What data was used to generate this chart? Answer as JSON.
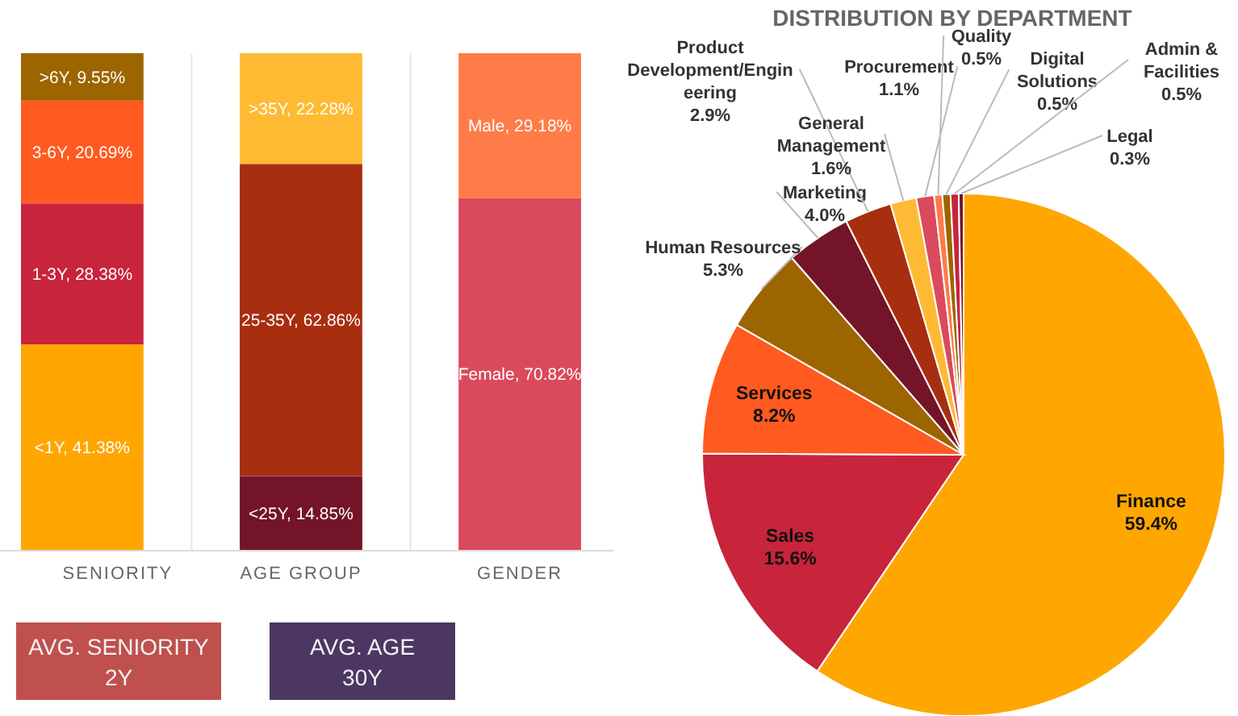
{
  "chart_data": [
    {
      "type": "bar",
      "stacked": true,
      "categories": [
        "SENIORITY",
        "AGE GROUP",
        "GENDER"
      ],
      "grid": "x",
      "series": [
        {
          "colors": [
            "#ffa600",
            "#741428",
            "#da4a5c"
          ],
          "values": [
            41.38,
            14.85,
            70.82
          ],
          "value_labels": [
            "<1Y, 41.38%",
            "<25Y, 14.85%",
            "Female, 70.82%"
          ]
        },
        {
          "colors": [
            "#c8243c",
            "#a82e10",
            "#ff7b48"
          ],
          "values": [
            28.38,
            62.86,
            29.18
          ],
          "value_labels": [
            "1-3Y, 28.38%",
            "25-35Y, 62.86%",
            "Male, 29.18%"
          ]
        },
        {
          "colors": [
            "#ff5a1f",
            "#ffba33",
            null
          ],
          "values": [
            20.69,
            22.28,
            null
          ],
          "value_labels": [
            "3-6Y, 20.69%",
            ">35Y, 22.28%",
            null
          ]
        },
        {
          "colors": [
            "#9c6500",
            null,
            null
          ],
          "values": [
            9.55,
            null,
            null
          ],
          "value_labels": [
            ">6Y, 9.55%",
            null,
            null
          ]
        }
      ]
    },
    {
      "type": "pie",
      "title": "DISTRIBUTION BY DEPARTMENT",
      "categories": [
        "Finance",
        "Sales",
        "Services",
        "Human Resources",
        "Marketing",
        "Product Development/Engineering",
        "General Management",
        "Procurement",
        "Quality",
        "Digital Solutions",
        "Admin & Facilities",
        "Legal"
      ],
      "values": [
        59.4,
        15.6,
        8.2,
        5.3,
        4.0,
        2.9,
        1.6,
        1.1,
        0.5,
        0.5,
        0.5,
        0.3
      ],
      "value_labels": [
        "59.4%",
        "15.6%",
        "8.2%",
        "5.3%",
        "4.0%",
        "2.9%",
        "1.6%",
        "1.1%",
        "0.5%",
        "0.5%",
        "0.5%",
        "0.3%"
      ],
      "colors": [
        "#ffa600",
        "#c8243c",
        "#ff5a1f",
        "#9c6500",
        "#741428",
        "#a82e10",
        "#ffba33",
        "#da4a5c",
        "#ff7b48",
        "#9c6500",
        "#c8243c",
        "#741428"
      ]
    },
    {
      "type": "other",
      "categories": [
        "AVG. SENIORITY",
        "AVG. AGE"
      ],
      "value_labels": [
        "2Y",
        "30Y"
      ],
      "colors": [
        "#c0504d",
        "#4b3762"
      ]
    }
  ]
}
